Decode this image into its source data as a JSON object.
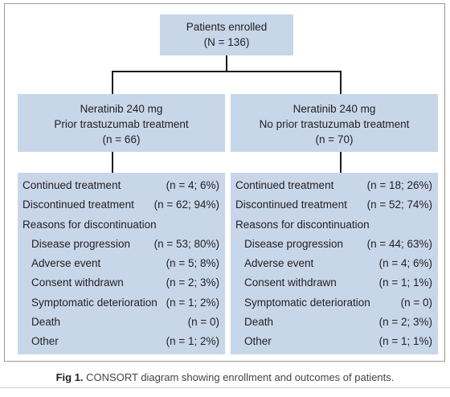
{
  "top": {
    "line1": "Patients enrolled",
    "line2": "(N = 136)"
  },
  "arms": [
    {
      "line1": "Neratinib 240 mg",
      "line2": "Prior trastuzumab treatment",
      "line3": "(n = 66)",
      "outcomes": [
        {
          "label": "Continued treatment",
          "value": "(n = 4; 6%)"
        },
        {
          "label": "Discontinued treatment",
          "value": "(n = 62; 94%)"
        },
        {
          "label": "Reasons for discontinuation",
          "value": ""
        },
        {
          "label": "Disease progression",
          "value": "(n = 53; 80%)"
        },
        {
          "label": "Adverse event",
          "value": "(n = 5; 8%)"
        },
        {
          "label": "Consent withdrawn",
          "value": "(n = 2; 3%)"
        },
        {
          "label": "Symptomatic deterioration",
          "value": "(n = 1; 2%)"
        },
        {
          "label": "Death",
          "value": "(n = 0)"
        },
        {
          "label": "Other",
          "value": "(n = 1; 2%)"
        }
      ]
    },
    {
      "line1": "Neratinib 240 mg",
      "line2": "No prior trastuzumab treatment",
      "line3": "(n = 70)",
      "outcomes": [
        {
          "label": "Continued treatment",
          "value": "(n = 18; 26%)"
        },
        {
          "label": "Discontinued treatment",
          "value": "(n = 52; 74%)"
        },
        {
          "label": "Reasons for discontinuation",
          "value": ""
        },
        {
          "label": "Disease progression",
          "value": "(n = 44; 63%)"
        },
        {
          "label": "Adverse event",
          "value": "(n = 4; 6%)"
        },
        {
          "label": "Consent withdrawn",
          "value": "(n = 1; 1%)"
        },
        {
          "label": "Symptomatic deterioration",
          "value": "(n = 0)"
        },
        {
          "label": "Death",
          "value": "(n = 2; 3%)"
        },
        {
          "label": "Other",
          "value": "(n = 1; 1%)"
        }
      ]
    }
  ],
  "caption": {
    "label": "Fig 1.",
    "text": "CONSORT diagram showing enrollment and outcomes of patients."
  },
  "colors": {
    "box_fill": "#c8d6ea",
    "connector": "#1a1a1a",
    "frame": "#9a9a9a"
  }
}
